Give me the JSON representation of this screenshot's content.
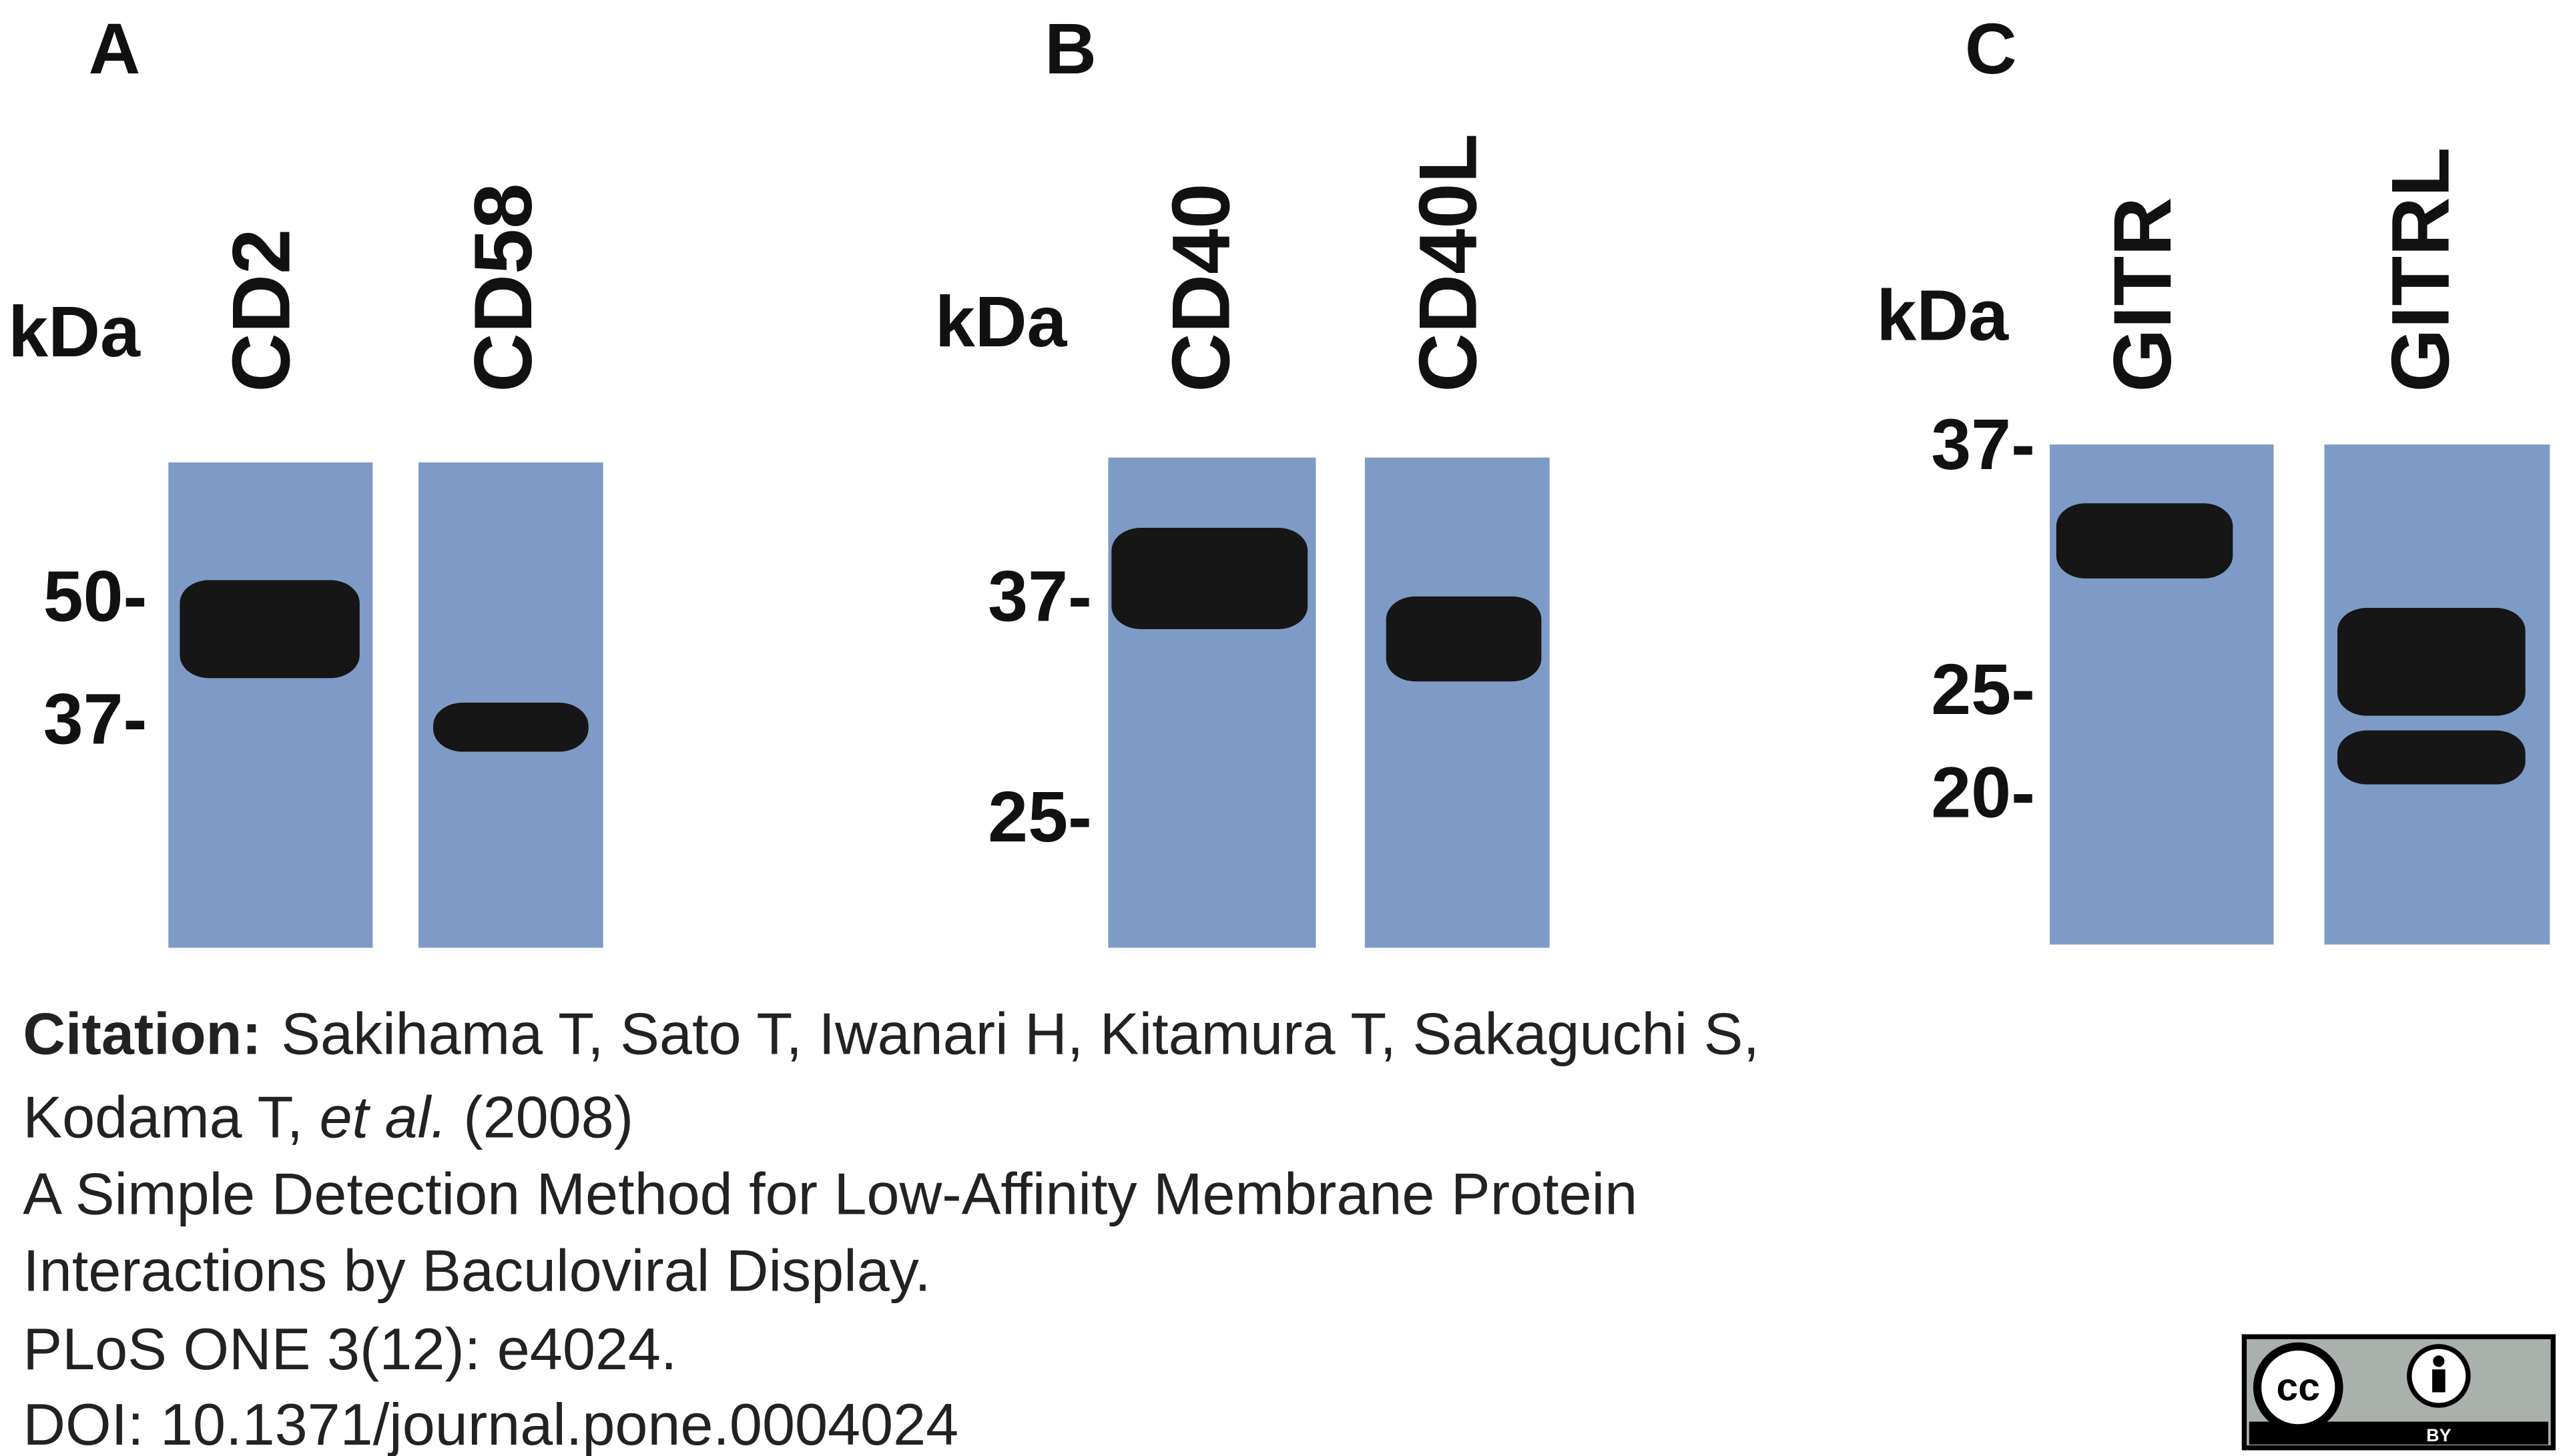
{
  "panels": [
    {
      "label": "A",
      "unit": "kDa",
      "lanes": [
        "CD2",
        "CD58"
      ],
      "markers": [
        "50-",
        "37-"
      ]
    },
    {
      "label": "B",
      "unit": "kDa",
      "lanes": [
        "CD40",
        "CD40L"
      ],
      "markers": [
        "37-",
        "25-"
      ]
    },
    {
      "label": "C",
      "unit": "kDa",
      "lanes": [
        "GITR",
        "GITRL"
      ],
      "markers": [
        "37-",
        "25-",
        "20-"
      ]
    }
  ],
  "citation": {
    "label": "Citation:",
    "authors": "Sakihama T, Sato T, Iwanari H, Kitamura T, Sakaguchi S,",
    "authors_cont": "Kodama T,",
    "et_al": "et al.",
    "year": "(2008)",
    "title_line1": "A Simple Detection Method for Low-Affinity Membrane Protein",
    "title_line2": "Interactions by Baculoviral Display.",
    "journal": "PLoS ONE 3(12): e4024.",
    "doi": "DOI: 10.1371/journal.pone.0004024"
  },
  "license": {
    "cc": "cc",
    "by": "BY"
  }
}
